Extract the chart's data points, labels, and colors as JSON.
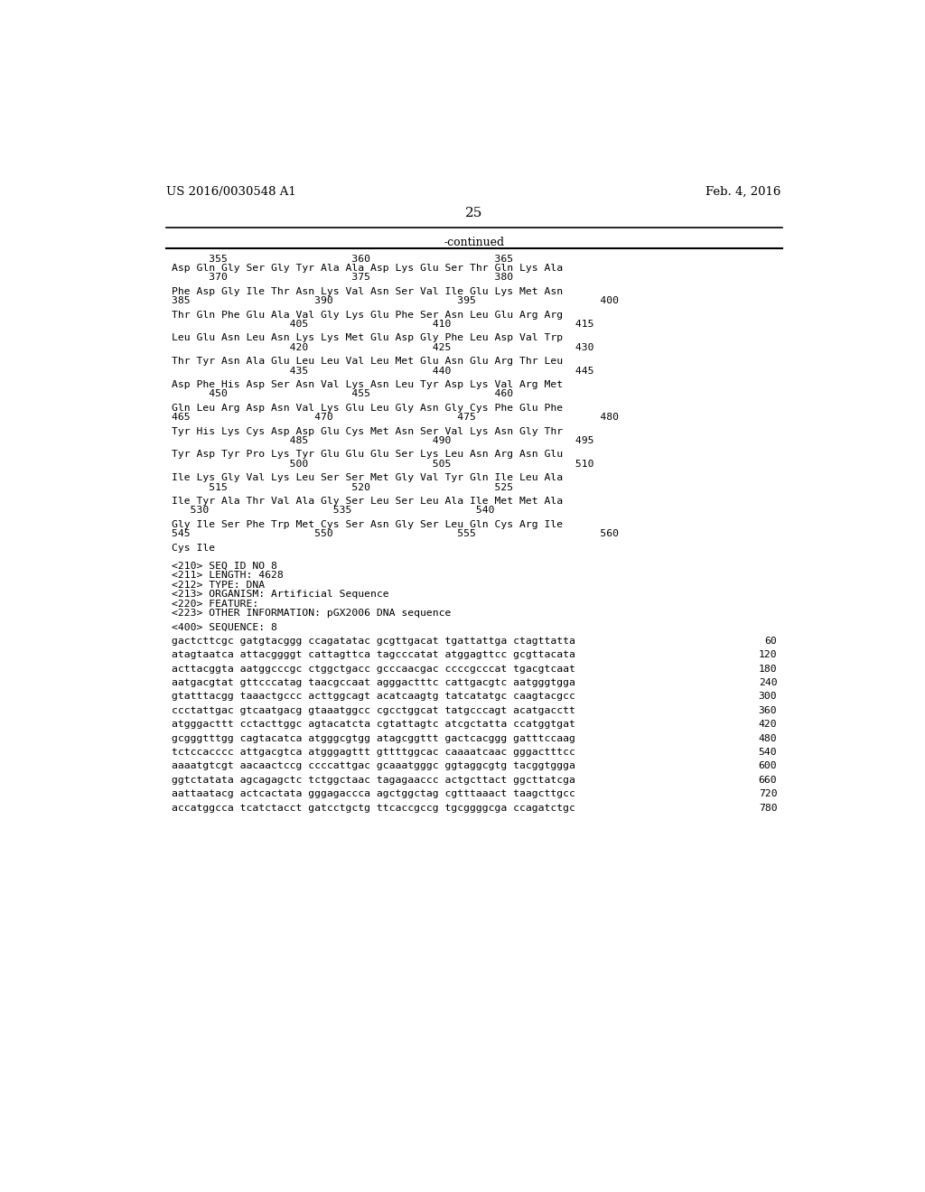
{
  "header_left": "US 2016/0030548 A1",
  "header_right": "Feb. 4, 2016",
  "page_number": "25",
  "continued_label": "-continued",
  "background_color": "#ffffff",
  "text_color": "#000000",
  "content_lines": [
    {
      "type": "numline",
      "text": "      355                    360                    365"
    },
    {
      "type": "seqaa",
      "text": "Asp Gln Gly Ser Gly Tyr Ala Ala Asp Lys Glu Ser Thr Gln Lys Ala"
    },
    {
      "type": "numline",
      "text": "      370                    375                    380"
    },
    {
      "type": "blank"
    },
    {
      "type": "seqaa",
      "text": "Phe Asp Gly Ile Thr Asn Lys Val Asn Ser Val Ile Glu Lys Met Asn"
    },
    {
      "type": "numline",
      "text": "385                    390                    395                    400"
    },
    {
      "type": "blank"
    },
    {
      "type": "seqaa",
      "text": "Thr Gln Phe Glu Ala Val Gly Lys Glu Phe Ser Asn Leu Glu Arg Arg"
    },
    {
      "type": "numline",
      "text": "                   405                    410                    415"
    },
    {
      "type": "blank"
    },
    {
      "type": "seqaa",
      "text": "Leu Glu Asn Leu Asn Lys Lys Met Glu Asp Gly Phe Leu Asp Val Trp"
    },
    {
      "type": "numline",
      "text": "                   420                    425                    430"
    },
    {
      "type": "blank"
    },
    {
      "type": "seqaa",
      "text": "Thr Tyr Asn Ala Glu Leu Leu Val Leu Met Glu Asn Glu Arg Thr Leu"
    },
    {
      "type": "numline",
      "text": "                   435                    440                    445"
    },
    {
      "type": "blank"
    },
    {
      "type": "seqaa",
      "text": "Asp Phe His Asp Ser Asn Val Lys Asn Leu Tyr Asp Lys Val Arg Met"
    },
    {
      "type": "numline",
      "text": "      450                    455                    460"
    },
    {
      "type": "blank"
    },
    {
      "type": "seqaa",
      "text": "Gln Leu Arg Asp Asn Val Lys Glu Leu Gly Asn Gly Cys Phe Glu Phe"
    },
    {
      "type": "numline",
      "text": "465                    470                    475                    480"
    },
    {
      "type": "blank"
    },
    {
      "type": "seqaa",
      "text": "Tyr His Lys Cys Asp Asp Glu Cys Met Asn Ser Val Lys Asn Gly Thr"
    },
    {
      "type": "numline",
      "text": "                   485                    490                    495"
    },
    {
      "type": "blank"
    },
    {
      "type": "seqaa",
      "text": "Tyr Asp Tyr Pro Lys Tyr Glu Glu Glu Ser Lys Leu Asn Arg Asn Glu"
    },
    {
      "type": "numline",
      "text": "                   500                    505                    510"
    },
    {
      "type": "blank"
    },
    {
      "type": "seqaa",
      "text": "Ile Lys Gly Val Lys Leu Ser Ser Met Gly Val Tyr Gln Ile Leu Ala"
    },
    {
      "type": "numline",
      "text": "      515                    520                    525"
    },
    {
      "type": "blank"
    },
    {
      "type": "seqaa",
      "text": "Ile Tyr Ala Thr Val Ala Gly Ser Leu Ser Leu Ala Ile Met Met Ala"
    },
    {
      "type": "numline",
      "text": "   530                    535                    540"
    },
    {
      "type": "blank"
    },
    {
      "type": "seqaa",
      "text": "Gly Ile Ser Phe Trp Met Cys Ser Asn Gly Ser Leu Gln Cys Arg Ile"
    },
    {
      "type": "numline",
      "text": "545                    550                    555                    560"
    },
    {
      "type": "blank"
    },
    {
      "type": "seqaa",
      "text": "Cys Ile"
    },
    {
      "type": "blank"
    },
    {
      "type": "blank"
    },
    {
      "type": "mono",
      "text": "<210> SEQ ID NO 8"
    },
    {
      "type": "mono",
      "text": "<211> LENGTH: 4628"
    },
    {
      "type": "mono",
      "text": "<212> TYPE: DNA"
    },
    {
      "type": "mono",
      "text": "<213> ORGANISM: Artificial Sequence"
    },
    {
      "type": "mono",
      "text": "<220> FEATURE:"
    },
    {
      "type": "mono",
      "text": "<223> OTHER INFORMATION: pGX2006 DNA sequence"
    },
    {
      "type": "blank"
    },
    {
      "type": "mono",
      "text": "<400> SEQUENCE: 8"
    },
    {
      "type": "blank"
    },
    {
      "type": "seq",
      "text": "gactcttcgc gatgtacggg ccagatatac gcgttgacat tgattattga ctagttatta",
      "num": "60"
    },
    {
      "type": "blank"
    },
    {
      "type": "seq",
      "text": "atagtaatca attacggggt cattagttca tagcccatat atggagttcc gcgttacata",
      "num": "120"
    },
    {
      "type": "blank"
    },
    {
      "type": "seq",
      "text": "acttacggta aatggcccgc ctggctgacc gcccaacgac ccccgcccat tgacgtcaat",
      "num": "180"
    },
    {
      "type": "blank"
    },
    {
      "type": "seq",
      "text": "aatgacgtat gttcccatag taacgccaat agggactttc cattgacgtc aatgggtgga",
      "num": "240"
    },
    {
      "type": "blank"
    },
    {
      "type": "seq",
      "text": "gtatttacgg taaactgccc acttggcagt acatcaagtg tatcatatgc caagtacgcc",
      "num": "300"
    },
    {
      "type": "blank"
    },
    {
      "type": "seq",
      "text": "ccctattgac gtcaatgacg gtaaatggcc cgcctggcat tatgcccagt acatgacctt",
      "num": "360"
    },
    {
      "type": "blank"
    },
    {
      "type": "seq",
      "text": "atgggacttt cctacttggc agtacatcta cgtattagtc atcgctatta ccatggtgat",
      "num": "420"
    },
    {
      "type": "blank"
    },
    {
      "type": "seq",
      "text": "gcgggtttgg cagtacatca atgggcgtgg atagcggttt gactcacggg gatttccaag",
      "num": "480"
    },
    {
      "type": "blank"
    },
    {
      "type": "seq",
      "text": "tctccacccc attgacgtca atgggagttt gttttggcac caaaatcaac gggactttcc",
      "num": "540"
    },
    {
      "type": "blank"
    },
    {
      "type": "seq",
      "text": "aaaatgtcgt aacaactccg ccccattgac gcaaatgggc ggtaggcgtg tacggtggga",
      "num": "600"
    },
    {
      "type": "blank"
    },
    {
      "type": "seq",
      "text": "ggtctatata agcagagctc tctggctaac tagagaaccc actgcttact ggcttatcga",
      "num": "660"
    },
    {
      "type": "blank"
    },
    {
      "type": "seq",
      "text": "aattaatacg actcactata gggagaccca agctggctag cgtttaaact taagcttgcc",
      "num": "720"
    },
    {
      "type": "blank"
    },
    {
      "type": "seq",
      "text": "accatggcca tcatctacct gatcctgctg ttcaccgccg tgcggggcga ccagatctgc",
      "num": "780"
    }
  ]
}
